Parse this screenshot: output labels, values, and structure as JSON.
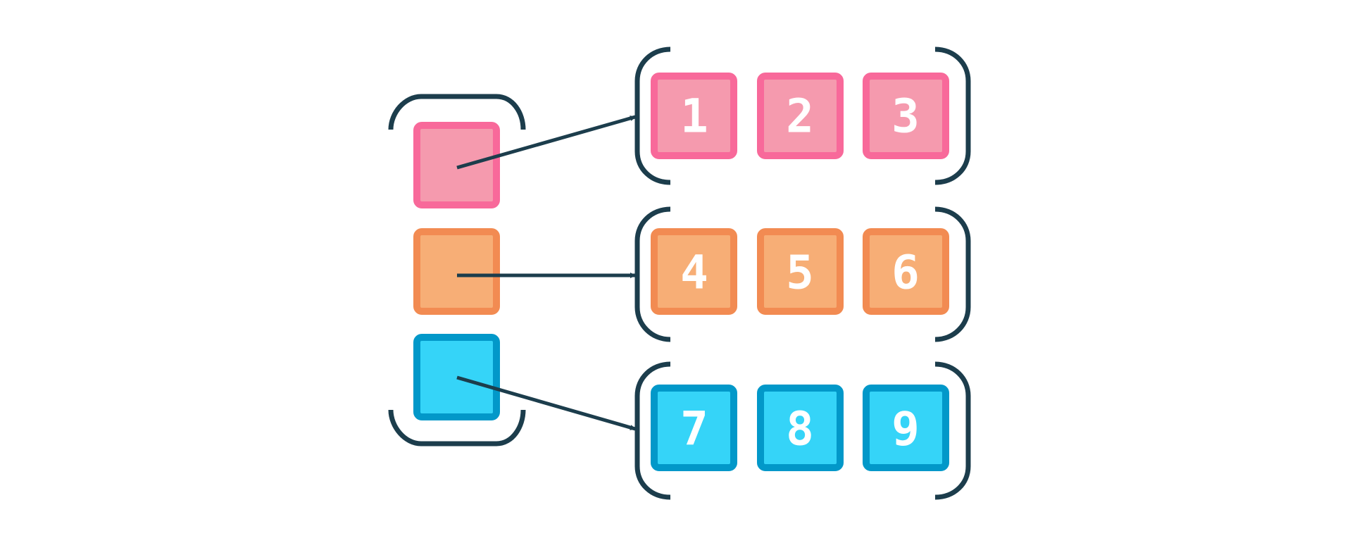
{
  "diagram": {
    "colors": {
      "bracket": "#1c3d4c",
      "arrow": "#1c3d4c",
      "pink_fill": "#f59aae",
      "pink_stroke": "#f8699a",
      "orange_fill": "#f7ae76",
      "orange_stroke": "#f28b52",
      "blue_fill": "#35d4f8",
      "blue_stroke": "#0298c9"
    },
    "rows": [
      {
        "color": "pink",
        "cells": [
          "1",
          "2",
          "3"
        ]
      },
      {
        "color": "orange",
        "cells": [
          "4",
          "5",
          "6"
        ]
      },
      {
        "color": "blue",
        "cells": [
          "7",
          "8",
          "9"
        ]
      }
    ]
  }
}
